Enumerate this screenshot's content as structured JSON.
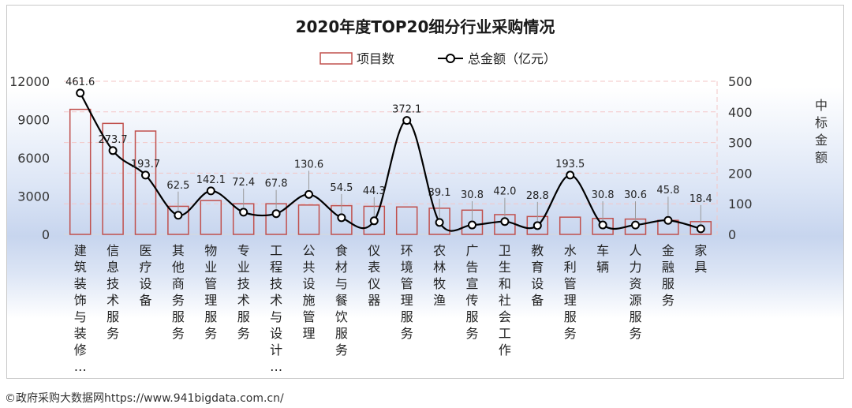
{
  "chart_data": {
    "type": "bar+line",
    "title": "2020年度TOP20细分行业采购情况",
    "legend": {
      "bar_label": "项目数",
      "line_label": "总金额（亿元）",
      "placement": "top"
    },
    "categories": [
      "建筑装饰与装修…",
      "信息技术服务",
      "医疗设备",
      "其他商务服务",
      "物业管理服务",
      "专业技术服务",
      "工程技术与设计…",
      "公共设施管理",
      "食材与餐饮服务",
      "仪表仪器",
      "环境管理服务",
      "农林牧渔",
      "广告宣传服务",
      "卫生和社会工作",
      "教育设备",
      "水利管理服务",
      "车辆",
      "人力资源服务",
      "金融服务",
      "家具"
    ],
    "series": [
      {
        "name": "项目数",
        "type": "bar",
        "axis": "left",
        "values": [
          9800,
          8700,
          8100,
          2200,
          2650,
          2400,
          2400,
          2300,
          2250,
          2200,
          2150,
          2050,
          1900,
          1550,
          1400,
          1350,
          1250,
          1200,
          1100,
          1000
        ]
      },
      {
        "name": "总金额（亿元）",
        "type": "line",
        "axis": "right",
        "values": [
          461.6,
          273.7,
          193.7,
          62.5,
          142.1,
          72.4,
          67.8,
          130.6,
          54.5,
          44.3,
          372.1,
          39.1,
          30.8,
          42.0,
          28.8,
          193.5,
          30.8,
          30.6,
          45.8,
          18.4
        ],
        "labels": [
          "461.6",
          "273.7",
          "193.7",
          "62.5",
          "142.1",
          "72.4",
          "67.8",
          "130.6",
          "54.5",
          "44.3",
          "372.1",
          "39.1",
          "30.8",
          "42.0",
          "28.8",
          "193.5",
          "30.8",
          "30.6",
          "45.8",
          "18.4"
        ]
      }
    ],
    "left_axis": {
      "ylim": [
        0,
        12000
      ],
      "ticks": [
        "12000",
        "9000",
        "6000",
        "3000",
        "0"
      ]
    },
    "right_axis": {
      "label": "中标金额",
      "ylim": [
        0,
        500
      ],
      "ticks": [
        "500",
        "400",
        "300",
        "200",
        "100",
        "0"
      ]
    },
    "colors": {
      "bar_border": "#c0504d",
      "bar_fill": "transparent",
      "line": "#000000",
      "marker_fill": "#ffffff",
      "grid": "#f3c6c6",
      "label_leader": "#999999"
    },
    "grid": true
  },
  "footer": "©政府采购大数据网https://www.941bigdata.com.cn/"
}
